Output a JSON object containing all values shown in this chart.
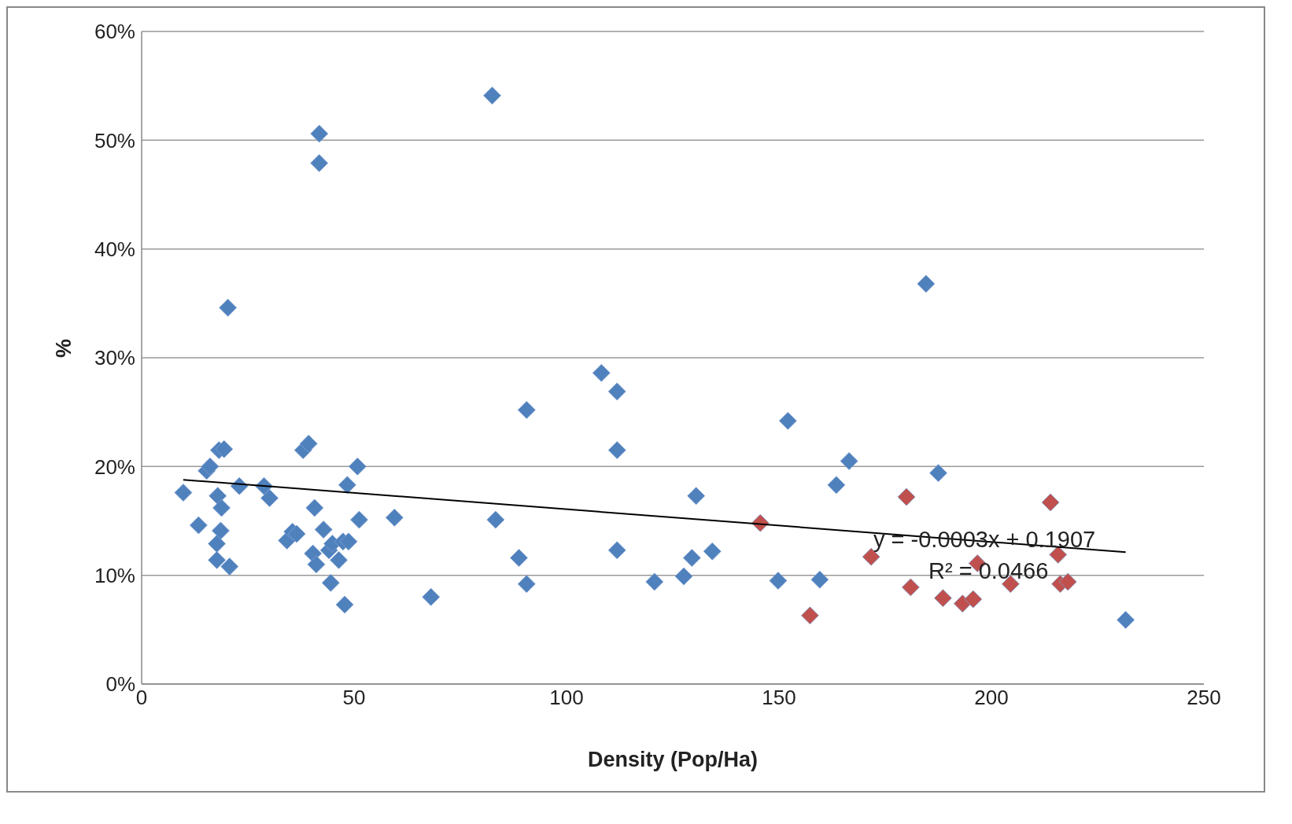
{
  "chart_data": {
    "type": "scatter",
    "xlabel": "Density (Pop/Ha)",
    "ylabel": "%",
    "xlim": [
      0,
      250
    ],
    "xticks": [
      0,
      50,
      100,
      150,
      200,
      250
    ],
    "ylim": [
      0,
      60
    ],
    "yticks": [
      {
        "value": 0,
        "label": "0%"
      },
      {
        "value": 10,
        "label": "10%"
      },
      {
        "value": 20,
        "label": "20%"
      },
      {
        "value": 30,
        "label": "30%"
      },
      {
        "value": 40,
        "label": "40%"
      },
      {
        "value": 50,
        "label": "50%"
      },
      {
        "value": 60,
        "label": "60%"
      }
    ],
    "grid": "y",
    "legend": false,
    "marker": "diamond",
    "series": [
      {
        "color": "#4f81bd",
        "x": [
          9.8,
          13.4,
          15.3,
          16.1,
          17.9,
          18.2,
          19.4,
          20.3,
          18.8,
          18.6,
          17.7,
          17.7,
          20.7,
          23.0,
          28.8,
          30.1,
          34.2,
          35.5,
          36.5,
          38.0,
          39.3,
          40.7,
          41.8,
          41.8,
          40.3,
          41.1,
          42.8,
          44.1,
          44.9,
          44.5,
          46.4,
          47.4,
          47.8,
          48.4,
          48.7,
          50.8,
          51.2,
          59.5,
          68.1,
          82.5,
          83.3,
          88.8,
          90.6,
          90.6,
          108.2,
          111.9,
          111.9,
          111.9,
          120.7,
          127.6,
          129.5,
          130.5,
          134.3,
          149.8,
          152.1,
          159.6,
          163.5,
          166.5,
          184.6,
          187.5,
          231.6
        ],
        "values": [
          17.6,
          14.6,
          19.6,
          20.0,
          17.3,
          21.5,
          21.6,
          34.6,
          16.2,
          14.1,
          12.9,
          11.4,
          10.8,
          18.2,
          18.2,
          17.1,
          13.2,
          14.0,
          13.8,
          21.5,
          22.1,
          16.2,
          50.6,
          47.9,
          12.0,
          11.0,
          14.2,
          12.3,
          12.9,
          9.3,
          11.4,
          13.1,
          7.3,
          18.3,
          13.1,
          20.0,
          15.1,
          15.3,
          8.0,
          54.1,
          15.1,
          11.6,
          25.2,
          9.2,
          28.6,
          26.9,
          21.5,
          12.3,
          9.4,
          9.9,
          11.6,
          17.3,
          12.2,
          9.5,
          24.2,
          9.6,
          18.3,
          20.5,
          36.8,
          19.4,
          5.9
        ]
      },
      {
        "color": "#c0504d",
        "x": [
          145.6,
          157.3,
          171.7,
          180.0,
          181.0,
          188.6,
          193.2,
          195.7,
          196.7,
          204.5,
          213.9,
          215.7,
          216.2,
          218.0
        ],
        "values": [
          14.8,
          6.3,
          11.7,
          17.2,
          8.9,
          7.9,
          7.4,
          7.8,
          11.1,
          9.2,
          16.7,
          11.9,
          9.2,
          9.4
        ]
      },
      {
        "type": "line",
        "color": "#000000",
        "marker": "none",
        "x": [
          9.8,
          231.6
        ],
        "values": [
          18.78,
          12.12
        ]
      }
    ],
    "annotations": [
      "y = -0.0003x + 0.1907",
      "R² = 0.0466"
    ]
  }
}
